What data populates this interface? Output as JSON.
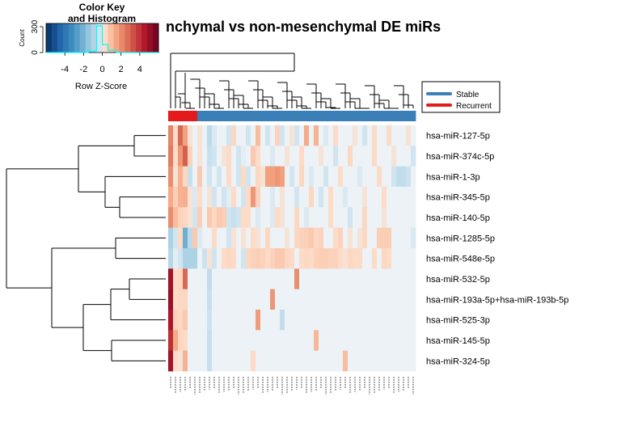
{
  "chart_data": {
    "type": "heatmap",
    "title": "nchymal vs non-mesenchymal DE miRs",
    "rows": [
      "hsa-miR-127-5p",
      "hsa-miR-374c-5p",
      "hsa-miR-1-3p",
      "hsa-miR-345-5p",
      "hsa-miR-140-5p",
      "hsa-miR-1285-5p",
      "hsa-miR-548e-5p",
      "hsa-miR-532-5p",
      "hsa-miR-193a-5p+hsa-miR-193b-5p",
      "hsa-miR-525-3p",
      "hsa-miR-145-5p",
      "hsa-miR-324-5p"
    ],
    "n_columns": 51,
    "column_groups": [
      "Recurrent",
      "Recurrent",
      "Recurrent",
      "Recurrent",
      "Recurrent",
      "Recurrent",
      "Stable",
      "Stable",
      "Stable",
      "Stable",
      "Stable",
      "Stable",
      "Stable",
      "Stable",
      "Stable",
      "Stable",
      "Stable",
      "Stable",
      "Stable",
      "Stable",
      "Stable",
      "Stable",
      "Stable",
      "Stable",
      "Stable",
      "Stable",
      "Stable",
      "Stable",
      "Stable",
      "Stable",
      "Stable",
      "Stable",
      "Stable",
      "Stable",
      "Stable",
      "Stable",
      "Stable",
      "Stable",
      "Stable",
      "Stable",
      "Stable",
      "Stable",
      "Stable",
      "Stable",
      "Stable",
      "Stable",
      "Stable",
      "Stable",
      "Stable",
      "Stable",
      "Stable"
    ],
    "group_colors": {
      "Stable": "#3A7FB8",
      "Recurrent": "#E41A1C"
    },
    "values": [
      [
        2.2,
        0.3,
        2.8,
        1.6,
        0.2,
        0.0,
        0.2,
        0.0,
        -0.7,
        -0.2,
        0.0,
        0.0,
        -0.3,
        0.4,
        0.0,
        0.0,
        -0.3,
        0.0,
        1.0,
        0.0,
        -0.3,
        0.0,
        0.5,
        -0.3,
        0.0,
        0.2,
        -0.3,
        0.0,
        1.4,
        0.0,
        1.2,
        0.0,
        -0.2,
        0.0,
        0.3,
        0.0,
        0.0,
        0.0,
        0.2,
        0.0,
        -0.3,
        0.0,
        0.3,
        0.0,
        0.0,
        0.3,
        0.0,
        0.0,
        0.0,
        0.2,
        0.0
      ],
      [
        2.4,
        0.3,
        1.8,
        3.0,
        0.5,
        0.0,
        0.2,
        0.0,
        -0.5,
        -0.3,
        0.0,
        0.2,
        0.3,
        0.0,
        -0.3,
        -0.1,
        0.0,
        0.7,
        0.3,
        0.0,
        0.0,
        -0.2,
        0.0,
        0.0,
        0.2,
        0.0,
        0.0,
        0.3,
        0.0,
        0.0,
        0.0,
        0.2,
        0.0,
        0.0,
        -0.3,
        0.0,
        0.0,
        0.4,
        0.0,
        0.0,
        0.0,
        0.0,
        0.3,
        0.0,
        0.0,
        0.0,
        0.2,
        0.0,
        0.0,
        0.0,
        -0.3
      ],
      [
        2.0,
        0.2,
        1.2,
        0.4,
        -0.5,
        0.0,
        0.7,
        0.0,
        -0.3,
        0.0,
        -0.3,
        0.0,
        0.3,
        0.0,
        -0.3,
        0.3,
        -0.3,
        0.0,
        0.4,
        0.2,
        1.6,
        1.6,
        1.8,
        1.6,
        0.0,
        -0.3,
        0.0,
        0.4,
        0.0,
        -0.2,
        0.0,
        0.0,
        -0.3,
        0.0,
        0.0,
        0.3,
        0.0,
        0.0,
        0.0,
        -0.2,
        0.0,
        0.0,
        0.0,
        0.3,
        0.0,
        0.0,
        -0.3,
        -0.6,
        -0.6,
        -0.4,
        0.0
      ],
      [
        1.4,
        0.6,
        1.2,
        1.3,
        0.2,
        -0.2,
        0.3,
        0.0,
        0.2,
        -0.3,
        0.0,
        -0.3,
        -0.1,
        0.3,
        0.0,
        -0.3,
        0.3,
        1.8,
        0.5,
        0.0,
        0.0,
        -0.2,
        0.0,
        0.2,
        0.0,
        0.0,
        -0.3,
        0.0,
        0.0,
        0.4,
        0.0,
        -0.3,
        0.0,
        0.3,
        0.0,
        0.0,
        -0.2,
        0.0,
        0.0,
        0.0,
        0.2,
        0.0,
        0.0,
        0.0,
        0.3,
        0.0,
        0.0,
        0.0,
        0.0,
        0.0,
        0.0
      ],
      [
        2.0,
        1.0,
        0.5,
        0.4,
        0.2,
        -0.3,
        0.6,
        0.0,
        0.7,
        0.4,
        0.7,
        0.6,
        -0.3,
        -0.5,
        -0.3,
        0.3,
        0.3,
        0.0,
        -0.2,
        0.0,
        0.0,
        -0.2,
        0.3,
        0.2,
        0.0,
        0.0,
        0.4,
        0.0,
        -0.2,
        0.0,
        0.0,
        0.0,
        0.0,
        0.3,
        0.0,
        0.0,
        0.0,
        -0.3,
        0.0,
        0.0,
        0.4,
        0.0,
        0.0,
        0.0,
        0.2,
        0.0,
        0.0,
        0.0,
        0.0,
        0.0,
        0.0
      ],
      [
        -1.0,
        -0.3,
        0.3,
        -2.2,
        -0.7,
        0.7,
        -0.2,
        0.0,
        0.0,
        0.3,
        0.0,
        0.0,
        -0.3,
        0.2,
        0.0,
        0.2,
        0.0,
        0.3,
        0.2,
        0.0,
        0.4,
        0.0,
        0.0,
        0.0,
        0.2,
        0.0,
        0.4,
        0.5,
        0.6,
        0.7,
        0.4,
        0.5,
        0.0,
        0.0,
        0.3,
        0.5,
        0.0,
        0.2,
        0.0,
        0.2,
        0.4,
        0.0,
        0.0,
        0.6,
        0.6,
        0.6,
        0.0,
        0.0,
        0.0,
        0.0,
        -0.2
      ],
      [
        -0.8,
        -0.1,
        -0.3,
        -1.0,
        -1.0,
        -1.0,
        0.0,
        -0.4,
        0.2,
        -0.3,
        0.0,
        0.3,
        0.4,
        0.3,
        0.0,
        -0.3,
        0.4,
        0.5,
        0.6,
        0.5,
        0.3,
        0.5,
        0.7,
        0.7,
        0.4,
        0.3,
        0.0,
        0.3,
        0.4,
        0.3,
        0.5,
        0.6,
        0.6,
        0.5,
        0.5,
        0.3,
        0.2,
        0.4,
        0.3,
        0.3,
        0.0,
        0.0,
        0.3,
        0.0,
        0.4,
        0.3,
        0.0,
        0.0,
        0.0,
        0.0,
        0.0
      ],
      [
        4.8,
        0.3,
        0.4,
        2.8,
        0.0,
        0.0,
        0.0,
        0.0,
        -0.6,
        0.0,
        0.0,
        0.0,
        0.0,
        0.0,
        0.0,
        0.0,
        0.0,
        0.0,
        0.0,
        0.0,
        0.0,
        0.0,
        0.0,
        0.0,
        0.0,
        0.0,
        2.0,
        0.0,
        0.0,
        0.0,
        0.0,
        0.0,
        0.0,
        0.0,
        0.0,
        0.0,
        0.0,
        0.0,
        0.0,
        0.0,
        0.0,
        0.0,
        0.0,
        0.0,
        0.0,
        0.0,
        0.0,
        0.0,
        0.0,
        0.0,
        0.0
      ],
      [
        5.0,
        0.3,
        0.4,
        0.4,
        0.0,
        0.0,
        0.0,
        0.0,
        -0.5,
        0.0,
        0.0,
        0.0,
        0.0,
        0.0,
        0.0,
        0.0,
        0.0,
        0.0,
        0.0,
        0.0,
        0.0,
        1.8,
        0.0,
        0.0,
        0.0,
        0.0,
        0.0,
        0.0,
        0.0,
        0.0,
        0.0,
        0.0,
        0.0,
        0.0,
        0.0,
        0.0,
        0.0,
        0.0,
        0.0,
        0.0,
        0.0,
        0.0,
        0.0,
        0.0,
        0.0,
        0.0,
        0.0,
        0.0,
        0.0,
        0.0,
        0.0
      ],
      [
        4.6,
        0.5,
        0.4,
        0.7,
        0.0,
        0.0,
        0.0,
        0.0,
        -0.4,
        0.0,
        0.0,
        0.0,
        0.0,
        0.0,
        0.0,
        0.0,
        0.0,
        0.0,
        1.7,
        0.0,
        0.0,
        0.0,
        0.0,
        -0.6,
        0.0,
        0.0,
        0.0,
        0.0,
        0.0,
        0.0,
        0.0,
        0.0,
        0.0,
        0.0,
        0.0,
        0.0,
        0.0,
        0.0,
        0.0,
        0.0,
        0.0,
        0.0,
        0.0,
        0.0,
        0.0,
        0.0,
        0.0,
        0.0,
        0.0,
        0.0,
        0.0
      ],
      [
        4.0,
        1.4,
        0.4,
        0.3,
        0.0,
        0.0,
        0.0,
        0.0,
        -0.5,
        0.0,
        0.0,
        0.0,
        0.0,
        0.0,
        0.0,
        0.0,
        0.0,
        0.0,
        0.0,
        0.0,
        0.0,
        0.0,
        0.0,
        0.0,
        0.0,
        0.0,
        0.0,
        0.0,
        0.0,
        0.0,
        1.1,
        0.0,
        0.0,
        0.0,
        0.0,
        0.0,
        0.0,
        0.0,
        0.0,
        0.0,
        0.0,
        0.0,
        0.0,
        0.0,
        0.0,
        0.0,
        0.0,
        0.0,
        0.0,
        0.0,
        0.0
      ],
      [
        4.8,
        0.3,
        0.2,
        1.2,
        0.0,
        0.0,
        0.0,
        0.0,
        -0.5,
        0.0,
        0.0,
        0.0,
        0.0,
        0.0,
        0.0,
        0.0,
        0.0,
        0.3,
        0.0,
        0.0,
        0.0,
        0.0,
        0.0,
        0.0,
        0.0,
        0.0,
        0.0,
        0.0,
        0.0,
        0.0,
        0.0,
        0.0,
        0.0,
        0.0,
        0.0,
        0.0,
        1.0,
        0.0,
        0.0,
        0.0,
        0.0,
        0.0,
        0.0,
        0.0,
        0.0,
        0.0,
        0.0,
        0.0,
        0.0,
        0.0,
        0.0
      ]
    ],
    "color_key": {
      "title_line1": "Color Key",
      "title_line2": "and Histogram",
      "xlabel": "Row Z-Score",
      "ylabel": "Count",
      "xticks": [
        -4,
        -2,
        0,
        2,
        4
      ],
      "yticks": [
        0,
        300
      ],
      "range": [
        -6,
        6
      ],
      "histogram_line_color": "#00FFFF"
    },
    "legend": {
      "placement": "right",
      "entries": [
        {
          "label": "Stable",
          "color": "#3A7FB8"
        },
        {
          "label": "Recurrent",
          "color": "#E41A1C"
        }
      ]
    }
  }
}
